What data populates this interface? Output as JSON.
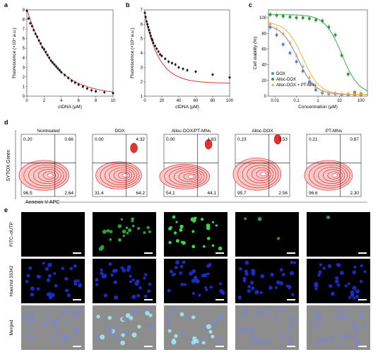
{
  "panel_letters": [
    "a",
    "b",
    "c",
    "d",
    "e"
  ],
  "colors": {
    "dox": "#5a7fd6",
    "alloc": "#2e9b3a",
    "alloc_pt": "#f0a62a",
    "fit": "#e02020",
    "flow": "#e23232"
  },
  "chart_data": [
    {
      "panel": "a",
      "type": "scatter",
      "xlabel": "ctDNA (µM)",
      "ylabel": "Fluorescence (×10⁴ a.u.)",
      "xlim": [
        0,
        10
      ],
      "ylim": [
        0,
        9
      ],
      "xticks": [
        0,
        2,
        4,
        6,
        8,
        10
      ],
      "yticks": [
        0,
        1,
        2,
        3,
        4,
        5,
        6,
        7,
        8,
        9
      ],
      "fit_line": true,
      "points": {
        "x": [
          0,
          0.2,
          0.4,
          0.6,
          0.8,
          1.0,
          1.2,
          1.4,
          1.6,
          1.8,
          2.0,
          2.2,
          2.4,
          2.6,
          2.8,
          3.0,
          3.2,
          3.4,
          3.6,
          3.8,
          4.0,
          4.4,
          4.8,
          5.2,
          5.6,
          6.0,
          6.5,
          7.0,
          7.5,
          8.0,
          9.0,
          10.0
        ],
        "y": [
          8.9,
          8.1,
          7.6,
          7.3,
          6.9,
          6.5,
          6.2,
          5.8,
          5.5,
          5.1,
          4.9,
          4.6,
          4.3,
          4.0,
          3.7,
          3.5,
          3.3,
          3.1,
          2.9,
          2.7,
          2.5,
          2.2,
          1.9,
          1.6,
          1.4,
          1.2,
          1.0,
          0.8,
          0.6,
          0.5,
          0.4,
          0.3
        ]
      }
    },
    {
      "panel": "b",
      "type": "scatter",
      "xlabel": "ctDNA (µM)",
      "ylabel": "Fluorescence (×10⁴ a.u.)",
      "xlim": [
        0,
        100
      ],
      "ylim": [
        1,
        7
      ],
      "xticks": [
        0,
        20,
        40,
        60,
        80,
        100
      ],
      "yticks": [
        1,
        2,
        3,
        4,
        5,
        6,
        7
      ],
      "fit_line": true,
      "points": {
        "x": [
          0,
          1,
          2,
          3,
          4,
          5,
          6,
          7,
          8,
          9,
          10,
          12,
          14,
          16,
          18,
          20,
          24,
          28,
          32,
          36,
          40,
          45,
          50,
          60,
          80,
          100
        ],
        "y": [
          6.8,
          6.5,
          6.2,
          6.0,
          5.8,
          5.6,
          5.4,
          5.2,
          5.0,
          4.9,
          4.7,
          4.5,
          4.3,
          4.1,
          3.9,
          3.8,
          3.6,
          3.4,
          3.3,
          3.2,
          3.0,
          2.9,
          2.8,
          2.7,
          2.5,
          2.3
        ]
      }
    },
    {
      "panel": "c",
      "type": "scatter",
      "xlabel": "Concentration (µM)",
      "ylabel": "Cell viability (%)",
      "xscale": "log",
      "xlim": [
        0.005,
        200
      ],
      "ylim": [
        0,
        110
      ],
      "xtick_labels": [
        "0.01",
        "0.1",
        "1",
        "10",
        "100"
      ],
      "xticks": [
        0.01,
        0.1,
        1,
        10,
        100
      ],
      "yticks": [
        0,
        20,
        40,
        60,
        80,
        100
      ],
      "legend_position": "bottom-left",
      "series": [
        {
          "name": "DOX",
          "x": [
            0.006,
            0.012,
            0.024,
            0.05,
            0.1,
            0.2,
            0.4,
            0.8,
            1.6,
            3.2,
            6.4,
            12.8,
            25.6,
            51.2,
            100
          ],
          "y": [
            88,
            78,
            66,
            55,
            44,
            32,
            18,
            8,
            4,
            3,
            3,
            2,
            2,
            2,
            2
          ]
        },
        {
          "name": "Alloc-DOX",
          "x": [
            0.006,
            0.012,
            0.024,
            0.05,
            0.1,
            0.2,
            0.4,
            0.8,
            1.6,
            3.2,
            6.4,
            12.8,
            25.6,
            51.2,
            100
          ],
          "y": [
            104,
            103,
            102,
            101,
            100,
            100,
            99,
            97,
            96,
            88,
            78,
            52,
            28,
            5,
            3
          ]
        },
        {
          "name": "Alloc-DOX + PT-MNs",
          "x": [
            0.006,
            0.012,
            0.024,
            0.05,
            0.1,
            0.2,
            0.4,
            0.8,
            1.6,
            3.2,
            6.4,
            12.8,
            25.6,
            51.2,
            100
          ],
          "y": [
            92,
            86,
            80,
            68,
            52,
            38,
            24,
            12,
            6,
            4,
            4,
            3,
            3,
            3,
            3
          ]
        }
      ]
    }
  ],
  "flow": {
    "ylabel": "SYTOX Green",
    "xlabel": "Annexin V-APC",
    "panels": [
      {
        "title": "Nontreated",
        "ul": "0.20",
        "ur": "0.66",
        "ll": "96.5",
        "lr": "2.64"
      },
      {
        "title": "DOX",
        "ul": "0.00",
        "ur": "4.32",
        "ll": "31.4",
        "lr": "64.2"
      },
      {
        "title": "Alloc-DOX/PT-MNs",
        "ul": "0.00",
        "ur": "1.83",
        "ll": "54.1",
        "lr": "44.1"
      },
      {
        "title": "Alloc-DOX",
        "ul": "0.23",
        "ur": "1.53",
        "ll": "95.7",
        "lr": "2.56"
      },
      {
        "title": "PT-MNs",
        "ul": "0.21",
        "ur": "0.87",
        "ll": "96.6",
        "lr": "2.30"
      }
    ]
  },
  "microscopy": {
    "row_labels": [
      "FITC–dUTP",
      "Hoechst 33342",
      "Merged"
    ]
  }
}
